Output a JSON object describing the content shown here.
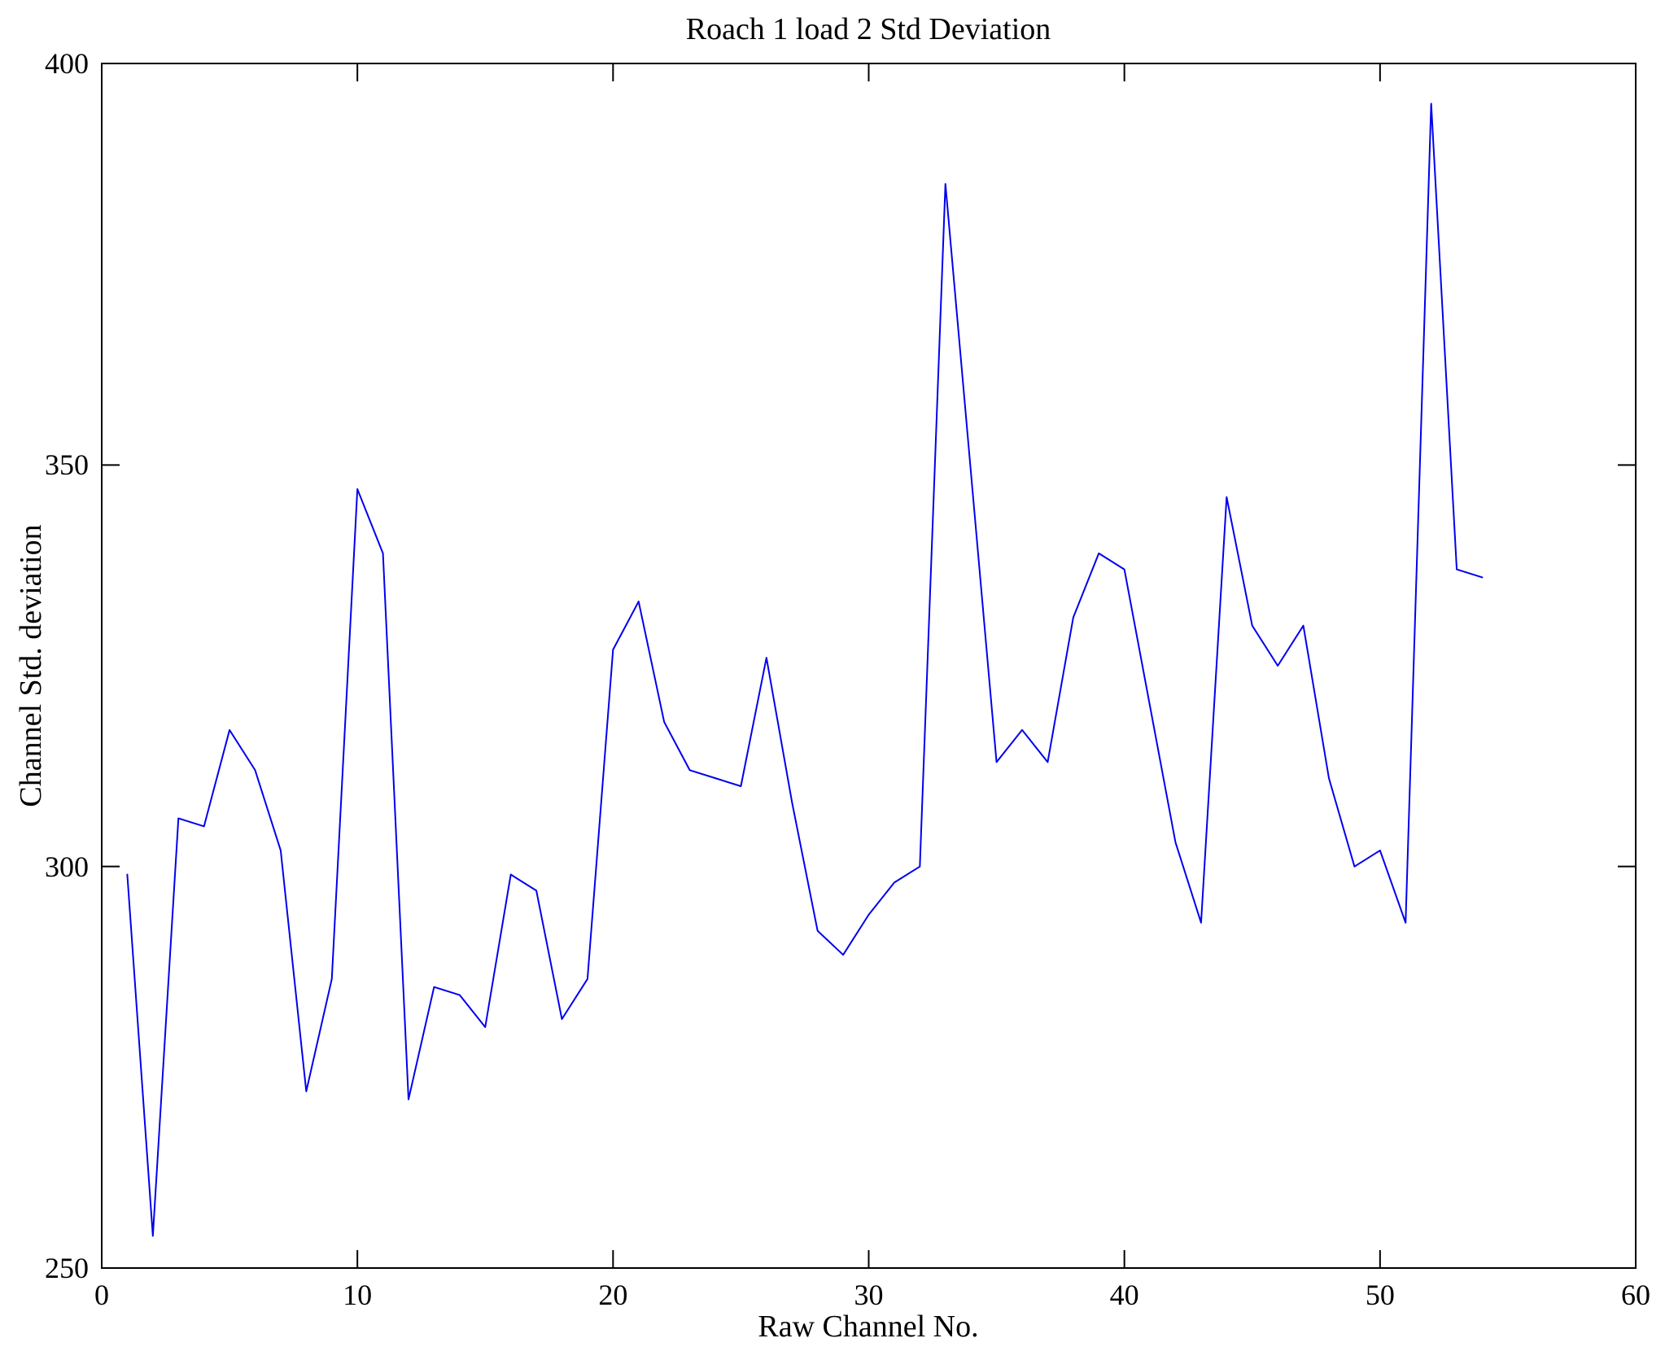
{
  "chart_data": {
    "type": "line",
    "title": "Roach 1 load 2 Std Deviation",
    "xlabel": "Raw Channel No.",
    "ylabel": "Channel Std. deviation",
    "xlim": [
      0,
      60
    ],
    "ylim": [
      250,
      400
    ],
    "x_ticks": [
      0,
      10,
      20,
      30,
      40,
      50,
      60
    ],
    "y_ticks": [
      250,
      300,
      350,
      400
    ],
    "grid": false,
    "legend": null,
    "line_color": "#0000ee",
    "axis_color": "#000000",
    "series": [
      {
        "name": "Channel Std. deviation",
        "x": [
          1,
          2,
          3,
          4,
          5,
          6,
          7,
          8,
          9,
          10,
          11,
          12,
          13,
          14,
          15,
          16,
          17,
          18,
          19,
          20,
          21,
          22,
          23,
          24,
          25,
          26,
          27,
          28,
          29,
          30,
          31,
          32,
          33,
          34,
          35,
          36,
          37,
          38,
          39,
          40,
          41,
          42,
          43,
          44,
          45,
          46,
          47,
          48,
          49,
          50,
          51,
          52,
          53,
          54
        ],
        "y": [
          299,
          254,
          306,
          305,
          317,
          312,
          302,
          272,
          286,
          347,
          339,
          271,
          285,
          284,
          280,
          299,
          297,
          281,
          286,
          327,
          333,
          318,
          312,
          311,
          310,
          326,
          308,
          292,
          289,
          294,
          298,
          300,
          385,
          349,
          313,
          317,
          313,
          331,
          339,
          337,
          320,
          303,
          293,
          346,
          330,
          325,
          330,
          311,
          300,
          302,
          293,
          395,
          337,
          336
        ]
      }
    ]
  }
}
